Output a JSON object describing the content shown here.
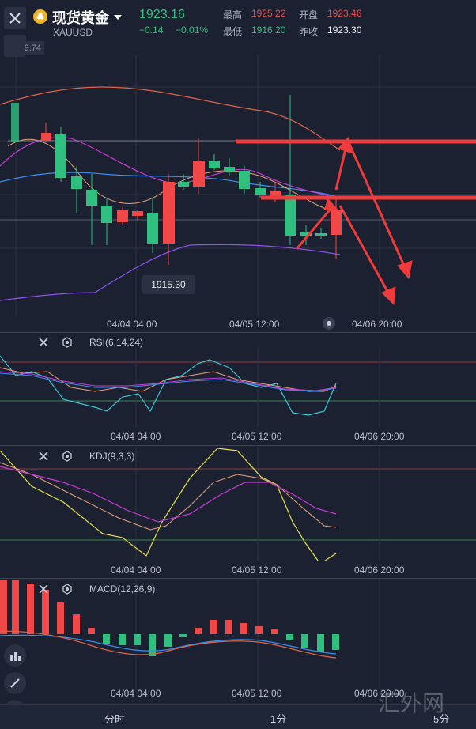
{
  "header": {
    "title": "现货黄金",
    "symbol": "XAUUSD",
    "price": "1923.16",
    "change": "−0.14",
    "change_pct": "−0.01%",
    "stats": {
      "high_label": "最高",
      "high": "1925.22",
      "open_label": "开盘",
      "open": "1923.46",
      "low_label": "最低",
      "low": "1916.20",
      "prev_close_label": "昨收",
      "prev_close": "1923.30"
    },
    "price_tag": "9.74"
  },
  "main_chart": {
    "low_marker": "1915.30",
    "x_labels": [
      "04/04 04:00",
      "04/05 12:00",
      "04/06 20:00"
    ]
  },
  "rsi": {
    "title": "RSI(6,14,24)",
    "x_labels": [
      "04/04 04:00",
      "04/05 12:00",
      "04/06 20:00"
    ]
  },
  "kdj": {
    "title": "KDJ(9,3,3)",
    "x_labels": [
      "04/04 04:00",
      "04/05 12:00",
      "04/06 20:00"
    ]
  },
  "macd": {
    "title": "MACD(12,26,9)",
    "x_labels": [
      "04/04 04:00",
      "04/05 12:00",
      "04/06 20:00"
    ]
  },
  "tabs": [
    "分时",
    "1分",
    "5分"
  ],
  "watermark": "汇外网",
  "colors": {
    "bg": "#1b2130",
    "up": "#f04848",
    "down": "#2fbf7f",
    "annotation": "#ee3b3b"
  }
}
